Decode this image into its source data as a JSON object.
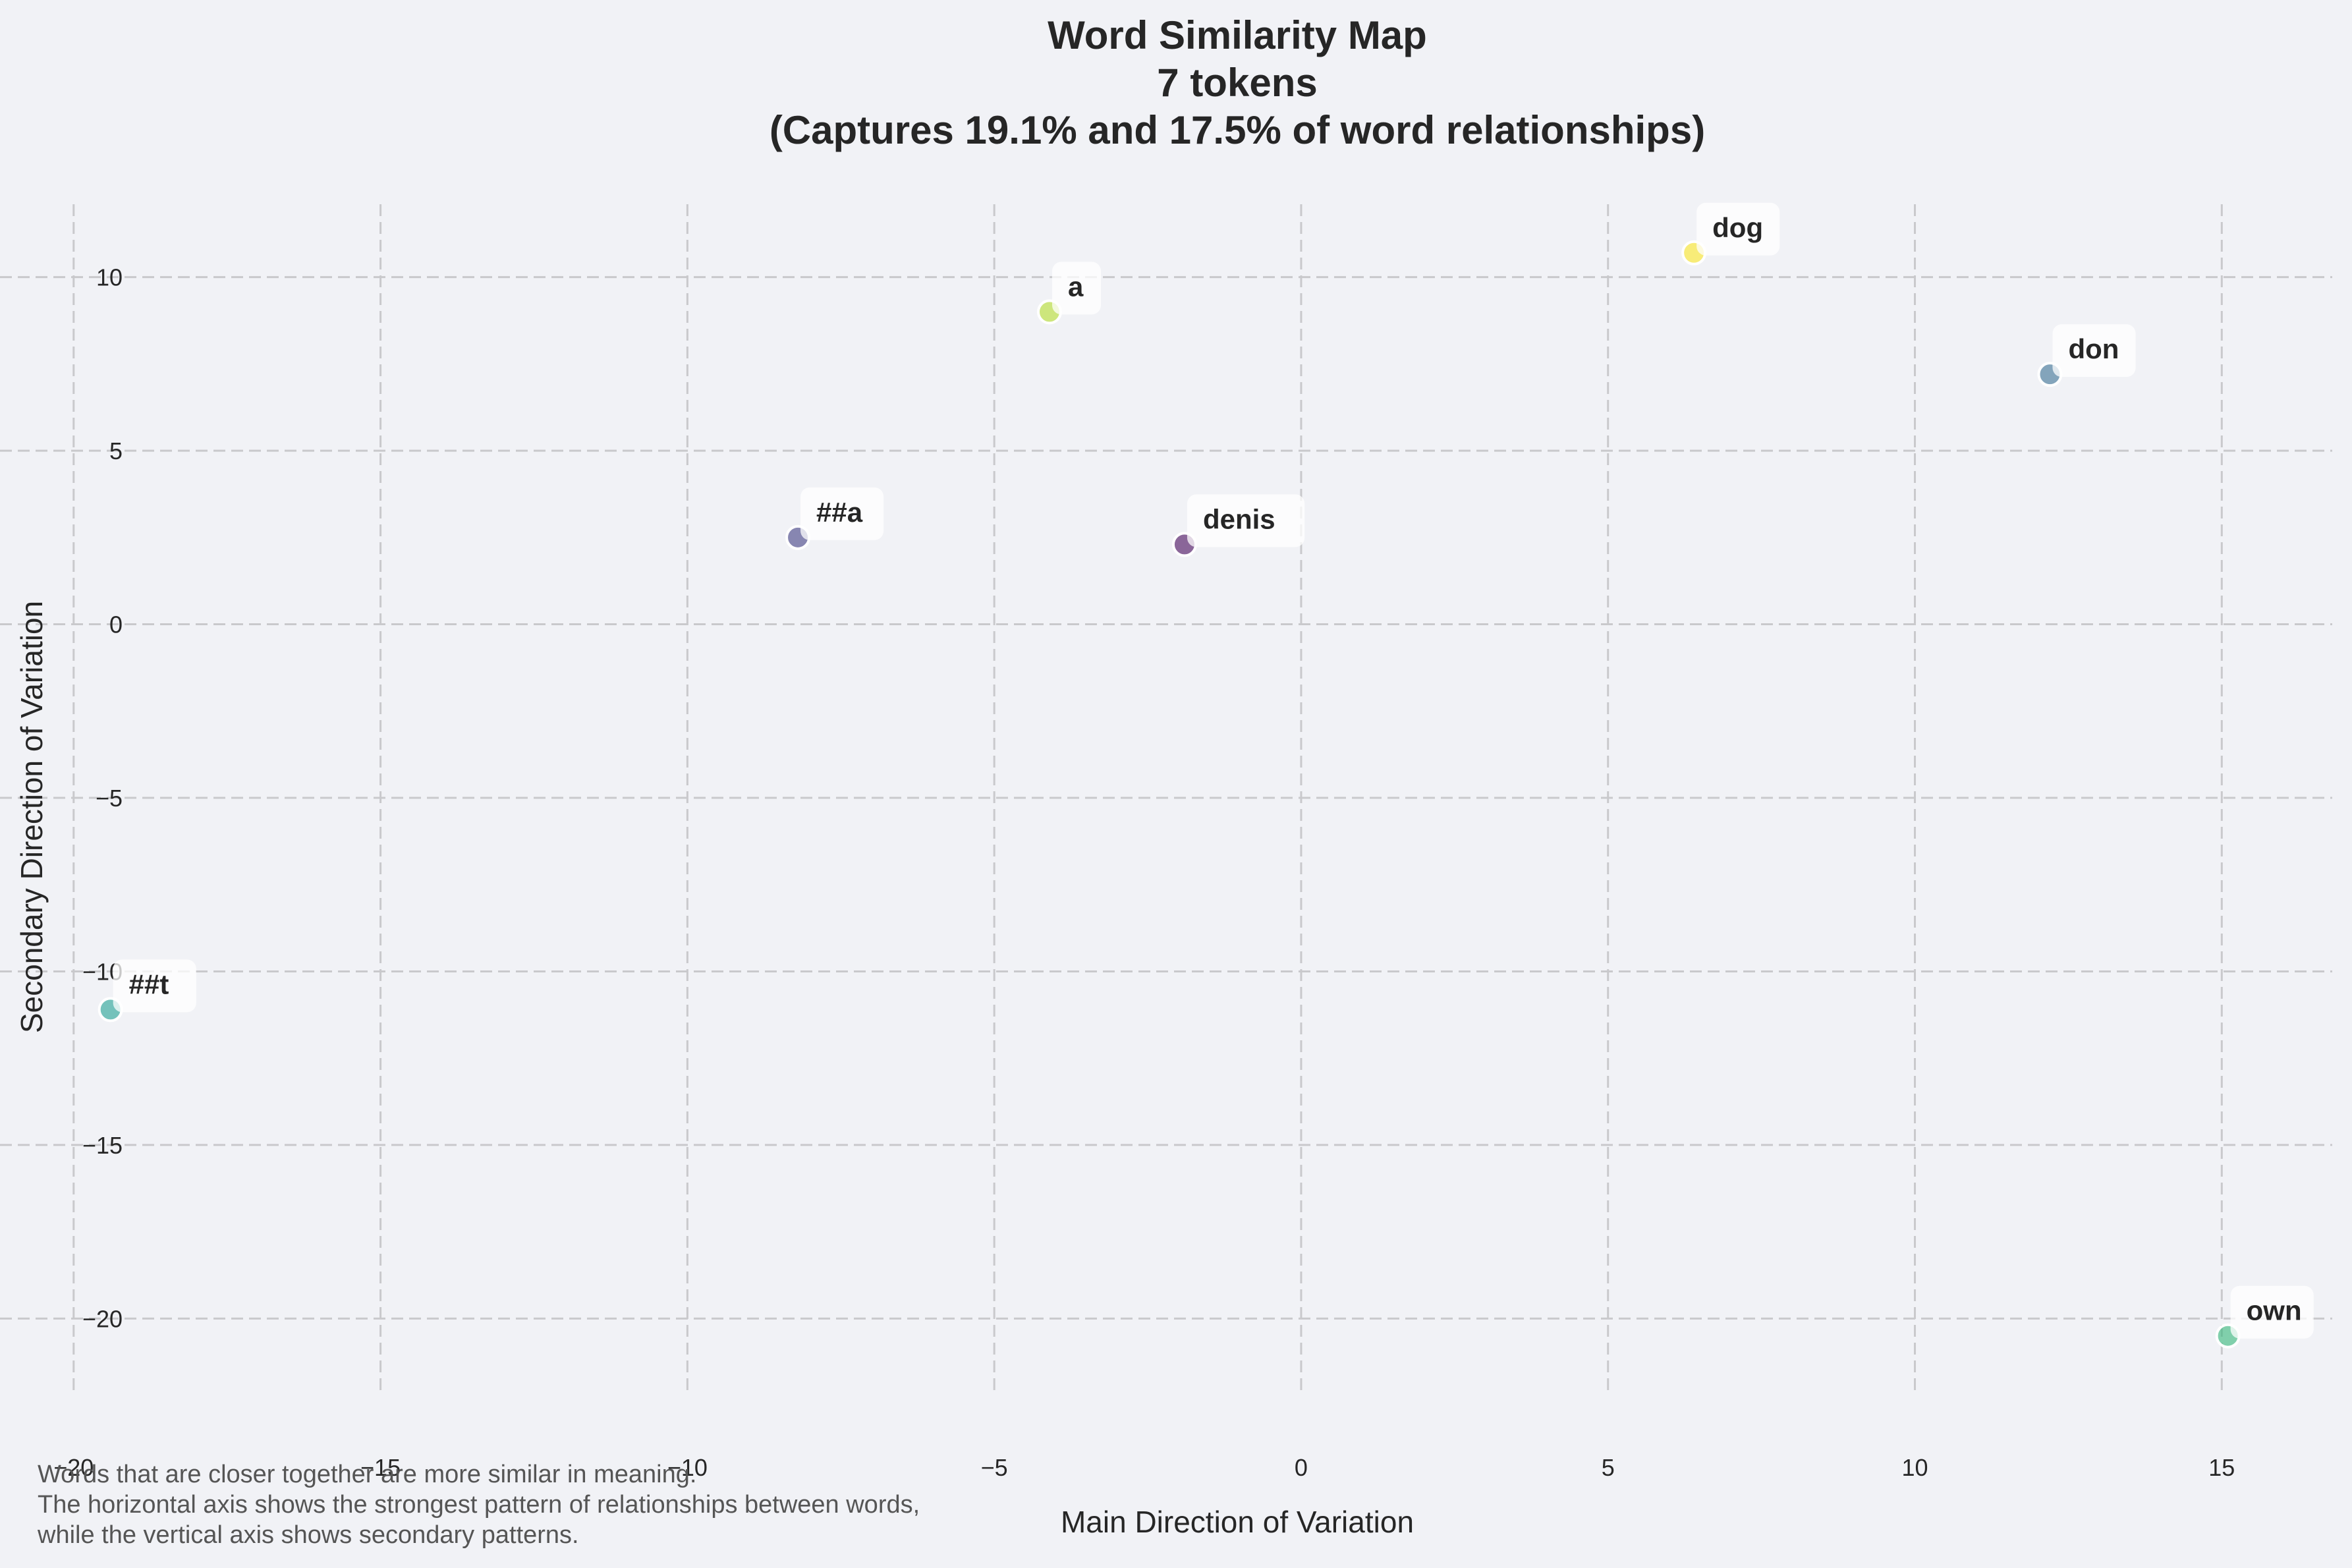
{
  "chart_data": {
    "type": "scatter",
    "title_lines": [
      "Word Similarity Map",
      "7 tokens",
      "(Captures 19.1% and 17.5% of word relationships)"
    ],
    "xlabel": "Main Direction of Variation",
    "ylabel": "Secondary Direction of Variation",
    "xlim": [
      -21.2,
      16.8
    ],
    "ylim": [
      -22.1,
      12.1
    ],
    "xticks": [
      -20,
      -15,
      -10,
      -5,
      0,
      5,
      10,
      15
    ],
    "yticks": [
      10,
      5,
      0,
      -5,
      -10,
      -15,
      -20
    ],
    "xtick_labels": [
      "−20",
      "−15",
      "−10",
      "−5",
      "0",
      "5",
      "10",
      "15"
    ],
    "ytick_labels": [
      "10",
      "5",
      "0",
      "−5",
      "−10",
      "−15",
      "−20"
    ],
    "grid": true,
    "points": [
      {
        "label": "dog",
        "x": 6.4,
        "y": 10.7,
        "color": "#fde725"
      },
      {
        "label": "a",
        "x": -4.1,
        "y": 9.0,
        "color": "#b5de2b"
      },
      {
        "label": "don",
        "x": 12.2,
        "y": 7.2,
        "color": "#3b6f95"
      },
      {
        "label": "##a",
        "x": -8.2,
        "y": 2.5,
        "color": "#413d84"
      },
      {
        "label": "denis",
        "x": -1.9,
        "y": 2.3,
        "color": "#46085c"
      },
      {
        "label": "##t",
        "x": -19.4,
        "y": -11.1,
        "color": "#21a195"
      },
      {
        "label": "own",
        "x": 15.1,
        "y": -20.5,
        "color": "#35b779"
      }
    ],
    "caption_lines": [
      "Words that are closer together are more similar in meaning.",
      "The horizontal axis shows the strongest pattern of relationships between words,",
      "while the vertical axis shows secondary patterns."
    ]
  }
}
